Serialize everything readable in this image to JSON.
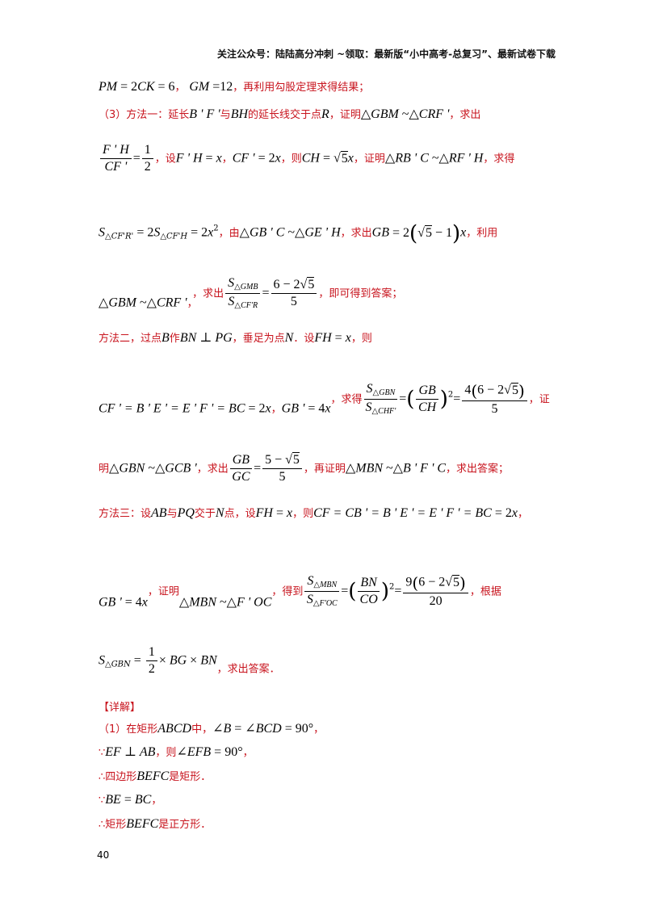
{
  "header": "关注公众号：陆陆高分冲刺 ~领取：最新版“小中高考-总复习”、最新试卷下载",
  "text": {
    "t1": "，",
    "t2": "，再利用勾股定理求得结果；",
    "t3": "（3）方法一：延长",
    "t4": "与",
    "t5": "的延长线交于点",
    "t6": "，证明",
    "t7": "，求出",
    "t8": "，设",
    "t9": "，",
    "t10": "，则",
    "t11": "，证明",
    "t12": "，求得",
    "t13": "，由",
    "t14": "，求出",
    "t15": "，利用",
    "t16": "，求出",
    "t17": "，即可得到答案；",
    "t18": "方法二，过点",
    "t19": "作",
    "t20": "，垂足为点",
    "t21": "．设",
    "t22": "，则",
    "t23": "，求得",
    "t24": "，证",
    "t25": "明",
    "t26": "，求出",
    "t27": "，再证明",
    "t28": "，求出答案；",
    "t29": "方法三：设",
    "t30": "与",
    "t31": "交于",
    "t32": "点，设",
    "t33": "，则",
    "t34": "，",
    "t35": "，证明",
    "t36": "，得到",
    "t37": "，根据",
    "t38": "，求出答案．",
    "detail": "【详解】",
    "d1a": "（1）在矩形",
    "d1b": "中，",
    "d2a": "∵",
    "d2b": "，则",
    "d2c": "，",
    "d3a": "∴四边形",
    "d3b": "是矩形．",
    "d4a": "∵",
    "d4b": "，",
    "d5a": "∴矩形",
    "d5b": "是正方形．"
  },
  "page_number": "40"
}
